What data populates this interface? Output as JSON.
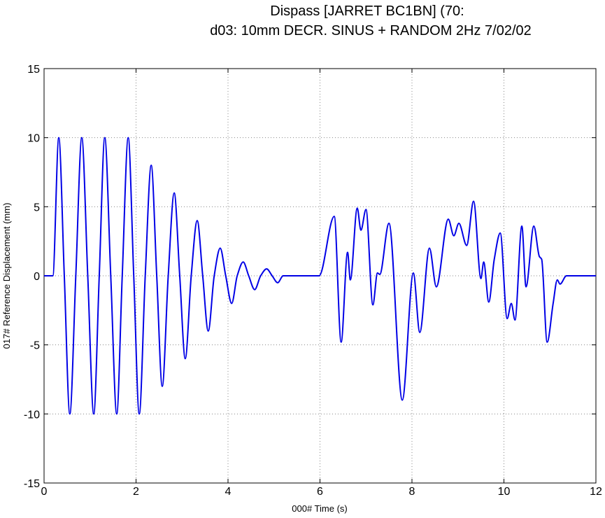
{
  "chart_data": {
    "type": "line",
    "title": [
      "Dispass [JARRET BC1BN] (70:",
      "d03: 10mm DECR. SINUS + RANDOM 2Hz 7/02/02"
    ],
    "xlabel": "000#  Time (s)",
    "ylabel": "017# Reference Displacement (mm)",
    "xlim": [
      0,
      12
    ],
    "xticks": [
      0,
      2,
      4,
      6,
      8,
      10,
      12
    ],
    "ylim": [
      -15,
      15
    ],
    "yticks": [
      15,
      10,
      5,
      0,
      -5,
      -10,
      -15
    ],
    "grid": true,
    "series": [
      {
        "color": "#0000e6",
        "x": [
          0,
          0.19,
          0.32,
          0.44,
          0.56,
          0.69,
          0.82,
          0.95,
          1.08,
          1.2,
          1.32,
          1.45,
          1.58,
          1.7,
          1.83,
          1.95,
          2.07,
          2.2,
          2.33,
          2.45,
          2.57,
          2.7,
          2.83,
          2.95,
          3.07,
          3.2,
          3.33,
          3.45,
          3.57,
          3.7,
          3.83,
          3.95,
          4.08,
          4.2,
          4.33,
          4.45,
          4.58,
          4.71,
          4.84,
          4.96,
          5.08,
          5.2,
          5.98,
          6.31,
          6.46,
          6.6,
          6.66,
          6.81,
          6.89,
          7.0,
          7.15,
          7.25,
          7.3,
          7.5,
          7.79,
          8.03,
          8.17,
          8.38,
          8.53,
          8.79,
          8.91,
          9.02,
          9.19,
          9.34,
          9.5,
          9.56,
          9.67,
          9.79,
          9.92,
          10.07,
          10.16,
          10.24,
          10.39,
          10.48,
          10.65,
          10.77,
          10.82,
          10.94,
          11.07,
          11.16,
          11.22,
          11.36,
          12
        ],
        "values": [
          0,
          0,
          10,
          0,
          -10,
          0,
          10,
          0,
          -10,
          0,
          10,
          0,
          -10,
          0,
          10,
          0,
          -10,
          0,
          8,
          0,
          -8,
          0,
          6,
          0,
          -6,
          0,
          4,
          0,
          -4,
          0,
          2,
          0,
          -2,
          0,
          1,
          0,
          -1,
          0,
          0.5,
          0,
          -0.5,
          0,
          0,
          4.3,
          -4.8,
          1.7,
          -0.3,
          4.9,
          3.3,
          4.8,
          -2.1,
          0.2,
          0.1,
          3.8,
          -9.0,
          0.2,
          -4.1,
          2.0,
          -0.8,
          4.1,
          2.9,
          3.8,
          2.2,
          5.4,
          -0.2,
          1.0,
          -1.9,
          1.2,
          3.1,
          -3.1,
          -2.0,
          -3.2,
          3.6,
          -0.8,
          3.6,
          1.4,
          1.2,
          -4.8,
          -2.0,
          -0.3,
          -0.6,
          0,
          0
        ]
      }
    ]
  }
}
